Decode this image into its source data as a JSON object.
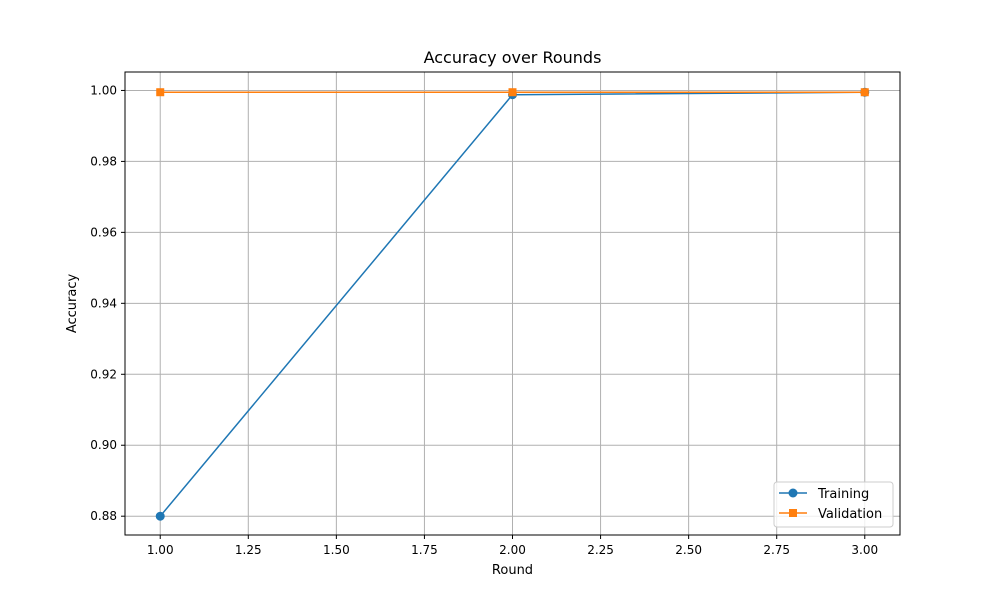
{
  "chart_data": {
    "type": "line",
    "title": "Accuracy over Rounds",
    "xlabel": "Round",
    "ylabel": "Accuracy",
    "x": [
      1,
      2,
      3
    ],
    "xlim": [
      0.9,
      3.1
    ],
    "ylim": [
      0.8747,
      1.0052
    ],
    "xticks": [
      1.0,
      1.25,
      1.5,
      1.75,
      2.0,
      2.25,
      2.5,
      2.75,
      3.0
    ],
    "xtick_labels": [
      "1.00",
      "1.25",
      "1.50",
      "1.75",
      "2.00",
      "2.25",
      "2.50",
      "2.75",
      "3.00"
    ],
    "yticks": [
      0.88,
      0.9,
      0.92,
      0.94,
      0.96,
      0.98,
      1.0
    ],
    "ytick_labels": [
      "0.88",
      "0.90",
      "0.92",
      "0.94",
      "0.96",
      "0.98",
      "1.00"
    ],
    "grid": true,
    "legend_position": "lower-right",
    "series": [
      {
        "name": "Training",
        "values": [
          0.88,
          0.9988,
          0.9995
        ],
        "color": "#1f77b4",
        "marker": "circle"
      },
      {
        "name": "Validation",
        "values": [
          0.9995,
          0.9995,
          0.9995
        ],
        "color": "#ff7f0e",
        "marker": "square"
      }
    ]
  }
}
